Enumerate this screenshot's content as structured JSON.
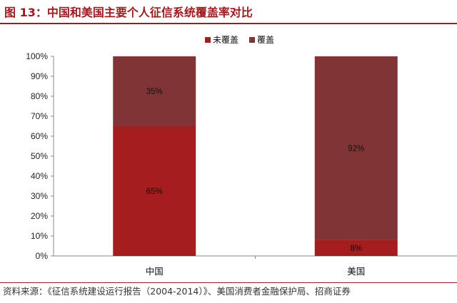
{
  "title": "图 13：中国和美国主要个人征信系统覆盖率对比",
  "source": "资料来源：《征信系统建设运行报告（2004-2014）》、美国消费者金融保护局、招商证券",
  "chart_data": {
    "type": "bar",
    "stacked": true,
    "categories": [
      "中国",
      "美国"
    ],
    "series": [
      {
        "name": "未覆盖",
        "values": [
          65,
          8
        ],
        "labels": [
          "65%",
          "8%"
        ],
        "color": "#a51d1d"
      },
      {
        "name": "覆盖",
        "values": [
          35,
          92
        ],
        "labels": [
          "35%",
          "92%"
        ],
        "color": "#7f3535"
      }
    ],
    "ylim": [
      0,
      100
    ],
    "yticks": [
      "0%",
      "10%",
      "20%",
      "30%",
      "40%",
      "50%",
      "60%",
      "70%",
      "80%",
      "90%",
      "100%"
    ],
    "legend_position": "top-right",
    "grid": false
  }
}
